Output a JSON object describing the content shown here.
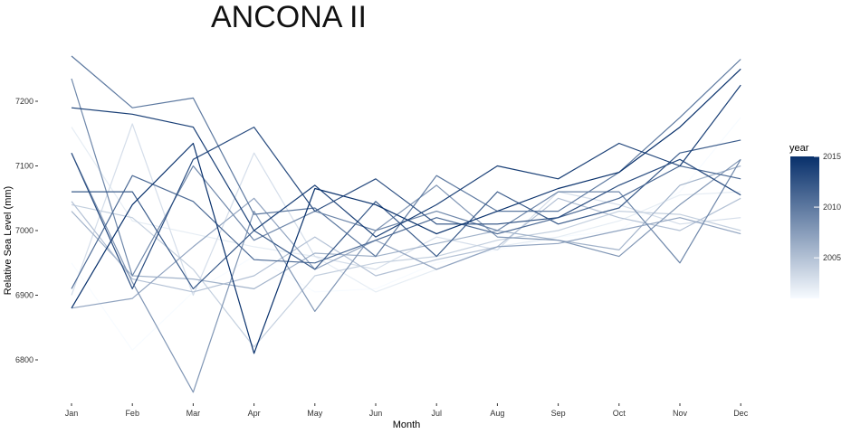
{
  "chart_data": {
    "type": "line",
    "title": "ANCONA II",
    "xlabel": "Month",
    "ylabel": "Relative Sea Level (mm)",
    "categories": [
      "Jan",
      "Feb",
      "Mar",
      "Apr",
      "May",
      "Jun",
      "Jul",
      "Aug",
      "Sep",
      "Oct",
      "Nov",
      "Dec"
    ],
    "ylim": [
      6740,
      7290
    ],
    "yticks": [
      6800,
      6900,
      7000,
      7100,
      7200
    ],
    "grid": false,
    "legend": {
      "title": "year",
      "position": "right",
      "type": "colorbar",
      "range": [
        2001,
        2015
      ],
      "ticks": [
        2005,
        2010,
        2015
      ],
      "color_low": "#f7fbff",
      "color_high": "#08306b"
    },
    "series": [
      {
        "year": 2001,
        "values": [
          6950,
          6815,
          6905,
          6960,
          6905,
          6910,
          6950,
          6970,
          6990,
          7000,
          7060,
          7175
        ]
      },
      {
        "year": 2002,
        "values": [
          7160,
          7015,
          6995,
          6975,
          6960,
          6905,
          6940,
          6975,
          6990,
          7015,
          7055,
          7060
        ]
      },
      {
        "year": 2003,
        "values": [
          6900,
          7165,
          6900,
          7120,
          6960,
          6940,
          6990,
          6970,
          7060,
          7040,
          7010,
          7020
        ]
      },
      {
        "year": 2004,
        "values": [
          7040,
          7020,
          6940,
          6820,
          6930,
          6950,
          6960,
          6985,
          7000,
          7030,
          7025,
          7000
        ]
      },
      {
        "year": 2005,
        "values": [
          7045,
          6925,
          6905,
          6930,
          6990,
          6930,
          6955,
          6975,
          7050,
          7020,
          7000,
          7050
        ]
      },
      {
        "year": 2006,
        "values": [
          7030,
          6930,
          6925,
          6910,
          6965,
          6960,
          6980,
          7000,
          6985,
          6970,
          7070,
          7100
        ]
      },
      {
        "year": 2007,
        "values": [
          6880,
          6895,
          6975,
          7050,
          6940,
          6985,
          6940,
          6975,
          6980,
          7000,
          7020,
          6995
        ]
      },
      {
        "year": 2008,
        "values": [
          7120,
          6920,
          6750,
          7030,
          6875,
          7000,
          7070,
          6990,
          6985,
          6960,
          7040,
          7110
        ]
      },
      {
        "year": 2009,
        "values": [
          7235,
          6930,
          7100,
          6985,
          7030,
          7000,
          7030,
          7000,
          7060,
          7060,
          6950,
          7110
        ]
      },
      {
        "year": 2010,
        "values": [
          7270,
          7190,
          7205,
          7025,
          7035,
          6960,
          7085,
          7030,
          7030,
          7090,
          7175,
          7265
        ]
      },
      {
        "year": 2011,
        "values": [
          6910,
          7085,
          7045,
          6955,
          6950,
          6985,
          7020,
          6995,
          7020,
          7050,
          7100,
          7080
        ]
      },
      {
        "year": 2012,
        "values": [
          7060,
          7060,
          6910,
          7000,
          6940,
          7045,
          6960,
          7060,
          7010,
          7035,
          7120,
          7140
        ]
      },
      {
        "year": 2013,
        "values": [
          7120,
          6910,
          7110,
          7160,
          7030,
          7080,
          7010,
          7010,
          7020,
          7070,
          7110,
          7055
        ]
      },
      {
        "year": 2014,
        "values": [
          7190,
          7180,
          7160,
          7000,
          7070,
          6990,
          7040,
          7100,
          7080,
          7135,
          7100,
          7225
        ]
      },
      {
        "year": 2015,
        "values": [
          6880,
          7040,
          7135,
          6810,
          7065,
          7040,
          6995,
          7030,
          7065,
          7090,
          7160,
          7250
        ]
      }
    ]
  }
}
